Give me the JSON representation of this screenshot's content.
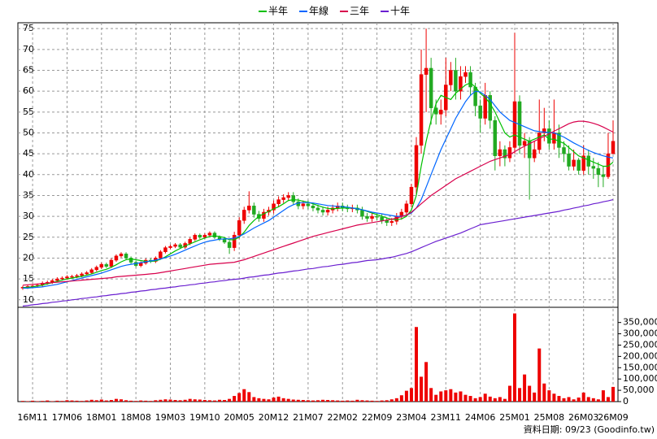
{
  "chart_data": {
    "type": "candlestick",
    "legend_position": "top",
    "footnote": "資料日期: 09/23 (Goodinfo.tw)",
    "categories": [
      null,
      null,
      "16M11",
      null,
      null,
      null,
      null,
      null,
      null,
      "17M06",
      null,
      null,
      null,
      null,
      null,
      null,
      "18M01",
      null,
      null,
      null,
      null,
      null,
      null,
      "18M08",
      null,
      null,
      null,
      null,
      null,
      null,
      "19M03",
      null,
      null,
      null,
      null,
      null,
      null,
      "19M10",
      null,
      null,
      null,
      null,
      null,
      null,
      "20M05",
      null,
      null,
      null,
      null,
      null,
      null,
      "20M12",
      null,
      null,
      null,
      null,
      null,
      null,
      "21M07",
      null,
      null,
      null,
      null,
      null,
      null,
      "22M02",
      null,
      null,
      null,
      null,
      null,
      null,
      "22M09",
      null,
      null,
      null,
      null,
      null,
      null,
      "23M04",
      null,
      null,
      null,
      null,
      null,
      null,
      "23M11",
      null,
      null,
      null,
      null,
      null,
      null,
      "24M06",
      null,
      null,
      null,
      null,
      null,
      null,
      "25M01",
      null,
      null,
      null,
      null,
      null,
      null,
      "25M08",
      null,
      null,
      null,
      null,
      null,
      null,
      "26M03",
      null,
      null,
      null,
      null,
      null,
      "26M09"
    ],
    "open": [
      12.8,
      13.0,
      13.2,
      13.3,
      13.5,
      14.0,
      14.2,
      14.6,
      15.0,
      15.2,
      15.5,
      15.6,
      15.8,
      16.2,
      16.5,
      17.2,
      17.8,
      18.5,
      18.0,
      19.5,
      20.5,
      21.0,
      20.0,
      19.0,
      18.2,
      18.8,
      19.5,
      19.2,
      20.0,
      21.5,
      22.5,
      22.8,
      23.2,
      22.6,
      23.5,
      24.5,
      25.5,
      25.0,
      25.5,
      26.0,
      25.0,
      24.5,
      23.8,
      22.5,
      25.5,
      29.0,
      31.5,
      32.5,
      30.5,
      29.5,
      31.0,
      31.5,
      33.0,
      34.0,
      34.5,
      35.0,
      33.5,
      32.5,
      33.0,
      32.5,
      32.0,
      31.5,
      31.0,
      31.5,
      32.0,
      32.5,
      32.0,
      31.8,
      32.0,
      31.5,
      30.0,
      29.5,
      30.0,
      29.8,
      29.0,
      28.5,
      28.8,
      30.0,
      31.0,
      33.0,
      37.0,
      47.0,
      64.0,
      65.5,
      56.0,
      54.5,
      55.5,
      61.5,
      65.0,
      60.0,
      63.5,
      64.5,
      61.0,
      56.5,
      53.5,
      59.0,
      53.0,
      44.5,
      46.0,
      44.0,
      46.5,
      57.5,
      47.0,
      48.0,
      44.0,
      46.0,
      50.0,
      51.0,
      47.5,
      50.0,
      46.5,
      45.0,
      42.0,
      43.5,
      41.0,
      44.5,
      42.0,
      41.5,
      40.0,
      39.5,
      45.0
    ],
    "high": [
      13.4,
      13.6,
      13.7,
      13.9,
      14.4,
      14.6,
      15.0,
      15.4,
      15.6,
      15.9,
      16.0,
      16.2,
      16.6,
      16.9,
      17.6,
      18.2,
      18.9,
      18.9,
      19.9,
      20.9,
      21.4,
      21.4,
      20.4,
      19.4,
      19.2,
      19.9,
      19.9,
      20.4,
      21.9,
      22.9,
      23.2,
      23.6,
      23.6,
      23.9,
      24.9,
      25.9,
      25.9,
      25.9,
      26.4,
      26.4,
      25.4,
      24.9,
      24.2,
      26.3,
      29.8,
      32.3,
      36.0,
      33.3,
      31.3,
      31.8,
      32.3,
      33.8,
      34.8,
      35.3,
      35.8,
      35.8,
      34.3,
      33.8,
      33.8,
      33.3,
      32.8,
      32.3,
      32.3,
      32.8,
      33.3,
      33.3,
      32.8,
      32.8,
      32.8,
      32.3,
      30.8,
      30.8,
      30.8,
      30.6,
      29.8,
      29.6,
      30.8,
      31.8,
      33.8,
      37.8,
      49,
      70,
      75,
      68,
      58,
      58,
      68,
      67,
      68,
      66,
      66,
      66,
      62,
      58,
      62,
      60,
      54,
      48,
      47,
      48,
      74,
      59,
      50,
      49,
      48,
      58,
      56,
      53,
      58,
      52,
      48,
      47,
      46,
      44,
      47,
      46,
      44,
      43,
      42,
      50,
      53
    ],
    "low": [
      12.4,
      12.6,
      12.8,
      12.9,
      13.1,
      13.6,
      13.8,
      14.2,
      14.6,
      14.8,
      15.1,
      15.2,
      15.4,
      15.8,
      16.1,
      16.8,
      17.4,
      17.6,
      17.6,
      19.1,
      20.1,
      19.6,
      18.6,
      17.8,
      17.8,
      18.4,
      18.8,
      18.8,
      19.6,
      21.1,
      22.1,
      22.4,
      22.2,
      22.2,
      23.1,
      24.1,
      24.6,
      24.6,
      25.1,
      24.6,
      24.1,
      23.4,
      21.0,
      21.7,
      24.7,
      28.2,
      30.7,
      29.7,
      28.7,
      28.7,
      30.2,
      30.7,
      32.2,
      33.2,
      33.7,
      32.7,
      31.7,
      31.7,
      31.7,
      31.2,
      30.7,
      30.2,
      30.2,
      30.7,
      31.2,
      31.2,
      31.0,
      31.0,
      30.7,
      29.2,
      28.7,
      28.7,
      29.0,
      28.2,
      27.7,
      27.7,
      28.0,
      29.2,
      30.2,
      32.2,
      35,
      45,
      55,
      52,
      52,
      52,
      54,
      60,
      58,
      58,
      62,
      59,
      54,
      50,
      52,
      51,
      41,
      42,
      42,
      43,
      45,
      45,
      44,
      34,
      43,
      45,
      48,
      46,
      46,
      44,
      43,
      41,
      41,
      40,
      40,
      40,
      39,
      37,
      37,
      39,
      45
    ],
    "close": [
      13.0,
      13.2,
      13.3,
      13.5,
      14.0,
      14.2,
      14.6,
      15.0,
      15.2,
      15.5,
      15.6,
      15.8,
      16.2,
      16.5,
      17.2,
      17.8,
      18.5,
      18.0,
      19.5,
      20.5,
      21.0,
      20.0,
      19.0,
      18.2,
      18.8,
      19.5,
      19.2,
      20.0,
      21.5,
      22.5,
      22.8,
      23.2,
      22.6,
      23.5,
      24.5,
      25.5,
      25.0,
      25.5,
      26.0,
      25.0,
      24.5,
      23.8,
      22.5,
      25.5,
      29.0,
      31.5,
      32.5,
      30.5,
      29.5,
      31.0,
      31.5,
      33.0,
      34.0,
      34.5,
      35.0,
      33.5,
      32.5,
      33.0,
      32.5,
      32.0,
      31.5,
      31.0,
      31.5,
      32.0,
      32.5,
      32.0,
      31.8,
      32.0,
      31.5,
      30.0,
      29.5,
      30.0,
      29.8,
      29.0,
      28.5,
      28.8,
      30.0,
      31.0,
      33.0,
      37.0,
      47.0,
      64.0,
      65.5,
      56.0,
      54.5,
      55.5,
      61.5,
      65.0,
      60.0,
      63.5,
      64.5,
      61.0,
      56.5,
      53.5,
      59.0,
      53.0,
      44.5,
      46.0,
      44.0,
      46.5,
      57.5,
      47.0,
      48.0,
      44.0,
      46.0,
      50.0,
      51.0,
      47.5,
      50.0,
      46.5,
      45.0,
      42.0,
      43.5,
      41.0,
      44.5,
      42.0,
      41.5,
      40.0,
      39.5,
      45.0,
      48.0
    ],
    "up_color": "#ee0000",
    "down_color": "#22aa22",
    "series": [
      {
        "name": "半年",
        "color": "#00c000",
        "values": [
          12.9,
          13.0,
          13.1,
          13.3,
          13.5,
          13.8,
          14.1,
          14.4,
          14.7,
          15.0,
          15.2,
          15.4,
          15.6,
          15.9,
          16.2,
          16.6,
          17.0,
          17.3,
          17.8,
          18.4,
          19.1,
          19.6,
          19.8,
          19.6,
          19.4,
          19.2,
          19.2,
          19.3,
          19.7,
          20.3,
          21.0,
          21.7,
          22.3,
          22.9,
          23.4,
          23.9,
          24.4,
          24.8,
          25.2,
          25.3,
          25.2,
          24.9,
          24.4,
          24.4,
          25.0,
          26.2,
          27.8,
          29.0,
          30.0,
          30.6,
          31.2,
          31.8,
          32.3,
          33.0,
          33.8,
          34.0,
          33.9,
          33.6,
          33.4,
          33.0,
          32.6,
          32.2,
          31.9,
          31.8,
          31.9,
          32.0,
          32.0,
          32.0,
          31.9,
          31.6,
          31.2,
          30.8,
          30.4,
          30.0,
          29.6,
          29.3,
          29.2,
          29.4,
          30.0,
          31.5,
          35.0,
          42.0,
          48.0,
          53.0,
          57.0,
          59.0,
          58.5,
          58.0,
          59.5,
          60.5,
          61.5,
          62.0,
          61.0,
          59.5,
          58.5,
          57.0,
          55.0,
          52.5,
          50.0,
          49.0,
          49.5,
          49.0,
          48.5,
          48.0,
          48.5,
          49.0,
          49.5,
          48.5,
          48.5,
          48.0,
          47.5,
          46.5,
          45.5,
          44.5,
          44.0,
          43.5,
          43.0,
          42.5,
          42.0,
          42.0,
          43.0
        ]
      },
      {
        "name": "年線",
        "color": "#0066ff",
        "values": [
          12.8,
          12.8,
          12.9,
          13.0,
          13.1,
          13.3,
          13.5,
          13.7,
          14.0,
          14.3,
          14.6,
          14.9,
          15.2,
          15.5,
          15.8,
          16.1,
          16.4,
          16.8,
          17.2,
          17.6,
          18.0,
          18.3,
          18.5,
          18.7,
          18.9,
          19.1,
          19.3,
          19.5,
          19.8,
          20.1,
          20.5,
          20.9,
          21.4,
          21.9,
          22.4,
          22.9,
          23.4,
          23.8,
          24.1,
          24.3,
          24.5,
          24.6,
          24.6,
          24.8,
          25.2,
          25.8,
          26.5,
          27.2,
          27.8,
          28.4,
          29.0,
          29.8,
          30.6,
          31.4,
          32.2,
          32.8,
          33.2,
          33.3,
          33.3,
          33.2,
          33.0,
          32.8,
          32.6,
          32.5,
          32.4,
          32.3,
          32.2,
          32.0,
          31.8,
          31.6,
          31.3,
          31.0,
          30.8,
          30.6,
          30.4,
          30.2,
          30.0,
          30.0,
          30.3,
          30.8,
          32.0,
          34.0,
          37.0,
          40.0,
          43.0,
          46.0,
          48.5,
          51.0,
          53.5,
          55.5,
          57.5,
          59.0,
          60.0,
          59.8,
          59.0,
          58.0,
          56.5,
          55.0,
          54.0,
          53.0,
          52.5,
          52.0,
          51.5,
          51.0,
          50.5,
          50.3,
          50.2,
          50.1,
          50.0,
          49.5,
          49.0,
          48.3,
          47.6,
          47.0,
          46.4,
          45.8,
          45.3,
          44.9,
          44.5,
          44.2,
          44.0
        ]
      },
      {
        "name": "三年",
        "color": "#d8004c",
        "values": [
          13.5,
          13.6,
          13.7,
          13.8,
          13.9,
          14.0,
          14.1,
          14.2,
          14.3,
          14.4,
          14.5,
          14.6,
          14.7,
          14.8,
          14.9,
          15.0,
          15.1,
          15.2,
          15.3,
          15.5,
          15.6,
          15.7,
          15.8,
          15.9,
          16.0,
          16.1,
          16.2,
          16.3,
          16.5,
          16.7,
          16.9,
          17.1,
          17.3,
          17.5,
          17.7,
          17.9,
          18.1,
          18.3,
          18.5,
          18.6,
          18.7,
          18.8,
          18.9,
          19.0,
          19.3,
          19.6,
          20.0,
          20.4,
          20.8,
          21.2,
          21.6,
          22.0,
          22.4,
          22.8,
          23.2,
          23.6,
          24.0,
          24.4,
          24.8,
          25.2,
          25.5,
          25.8,
          26.1,
          26.4,
          26.7,
          27.0,
          27.3,
          27.6,
          27.9,
          28.1,
          28.3,
          28.5,
          28.7,
          28.9,
          29.1,
          29.3,
          29.6,
          29.9,
          30.3,
          31.0,
          32.0,
          33.0,
          34.0,
          35.0,
          35.8,
          36.6,
          37.4,
          38.2,
          39.0,
          39.6,
          40.2,
          40.8,
          41.4,
          42.0,
          42.6,
          43.2,
          43.6,
          44.0,
          44.4,
          44.8,
          45.5,
          46.2,
          46.8,
          47.4,
          48.0,
          48.6,
          49.2,
          49.8,
          50.4,
          51.0,
          51.6,
          52.2,
          52.6,
          52.8,
          52.8,
          52.6,
          52.3,
          51.9,
          51.4,
          50.8,
          50.2
        ]
      },
      {
        "name": "十年",
        "color": "#6a1fd0",
        "values": [
          8.5,
          8.6,
          8.8,
          8.9,
          9.1,
          9.2,
          9.4,
          9.5,
          9.7,
          9.8,
          10.0,
          10.1,
          10.3,
          10.4,
          10.6,
          10.7,
          10.9,
          11.0,
          11.2,
          11.3,
          11.5,
          11.6,
          11.8,
          11.9,
          12.1,
          12.2,
          12.4,
          12.5,
          12.7,
          12.8,
          13.0,
          13.1,
          13.3,
          13.4,
          13.6,
          13.7,
          13.9,
          14.0,
          14.2,
          14.3,
          14.5,
          14.6,
          14.8,
          14.9,
          15.0,
          15.2,
          15.4,
          15.5,
          15.7,
          15.9,
          16.0,
          16.2,
          16.4,
          16.5,
          16.7,
          16.9,
          17.0,
          17.2,
          17.4,
          17.5,
          17.7,
          17.9,
          18.0,
          18.2,
          18.4,
          18.5,
          18.7,
          18.9,
          19.0,
          19.2,
          19.4,
          19.5,
          19.6,
          19.8,
          20.0,
          20.2,
          20.5,
          20.8,
          21.1,
          21.5,
          22.0,
          22.5,
          23.0,
          23.5,
          24.0,
          24.4,
          24.8,
          25.2,
          25.6,
          26.0,
          26.5,
          27.0,
          27.5,
          28.0,
          28.2,
          28.4,
          28.6,
          28.8,
          29.0,
          29.2,
          29.4,
          29.6,
          29.8,
          30.0,
          30.2,
          30.4,
          30.6,
          30.8,
          31.0,
          31.2,
          31.5,
          31.7,
          32.0,
          32.2,
          32.5,
          32.7,
          33.0,
          33.2,
          33.5,
          33.7,
          34.0
        ]
      }
    ],
    "ylim": [
      8.2,
      76.4
    ],
    "yticks": [
      10,
      15,
      20,
      25,
      30,
      35,
      40,
      45,
      50,
      55,
      60,
      65,
      70,
      75
    ],
    "grid": true,
    "volume": {
      "color": "#ee0000",
      "values": [
        3000,
        2000,
        4000,
        2000,
        3000,
        5000,
        2000,
        4000,
        3000,
        6000,
        5000,
        4000,
        3000,
        5000,
        8000,
        6000,
        9000,
        5000,
        7000,
        12000,
        10000,
        6000,
        4000,
        3000,
        5000,
        4000,
        3000,
        6000,
        8000,
        10000,
        9000,
        7000,
        6000,
        8000,
        12000,
        10000,
        9000,
        7000,
        6000,
        5000,
        8000,
        7000,
        12000,
        25000,
        38000,
        55000,
        42000,
        20000,
        15000,
        12000,
        10000,
        18000,
        22000,
        15000,
        12000,
        9000,
        8000,
        7000,
        6000,
        5000,
        6000,
        8000,
        7000,
        6000,
        5000,
        4000,
        5000,
        4000,
        8000,
        6000,
        5000,
        4000,
        3000,
        5000,
        6000,
        10000,
        15000,
        28000,
        48000,
        60000,
        330000,
        110000,
        175000,
        60000,
        30000,
        45000,
        50000,
        55000,
        40000,
        45000,
        30000,
        25000,
        15000,
        20000,
        35000,
        22000,
        15000,
        20000,
        12000,
        70000,
        390000,
        60000,
        120000,
        70000,
        40000,
        235000,
        80000,
        50000,
        35000,
        25000,
        15000,
        20000,
        10000,
        18000,
        40000,
        20000,
        15000,
        10000,
        50000,
        20000,
        65000
      ],
      "ylim": [
        0,
        410000
      ],
      "yticks": [
        0,
        {
          "value": 50000,
          "label": "50,000"
        },
        {
          "value": 100000,
          "label": "100,000"
        },
        {
          "value": 150000,
          "label": "150,000"
        },
        {
          "value": 200000,
          "label": "200,000"
        },
        {
          "value": 250000,
          "label": "250,000"
        },
        {
          "value": 300000,
          "label": "300,000"
        },
        {
          "value": 350000,
          "label": "350,000"
        }
      ]
    }
  }
}
